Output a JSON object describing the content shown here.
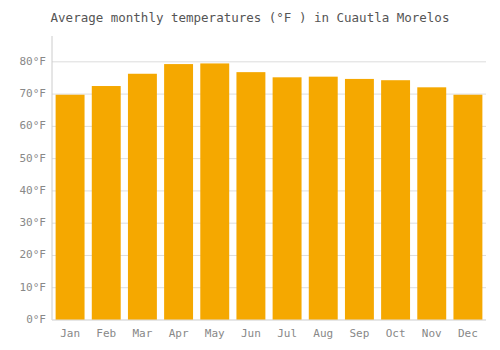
{
  "chart_data": {
    "type": "bar",
    "title": "Average monthly temperatures (°F ) in Cuautla Morelos",
    "categories": [
      "Jan",
      "Feb",
      "Mar",
      "Apr",
      "May",
      "Jun",
      "Jul",
      "Aug",
      "Sep",
      "Oct",
      "Nov",
      "Dec"
    ],
    "values": [
      69.8,
      72.5,
      76.3,
      79.3,
      79.5,
      76.8,
      75.2,
      75.4,
      74.7,
      74.3,
      72.1,
      69.8
    ],
    "color": "#F5A800",
    "ylim": [
      0,
      88
    ],
    "yticks": [
      {
        "value": 0,
        "label": "0°F"
      },
      {
        "value": 10,
        "label": "10°F"
      },
      {
        "value": 20,
        "label": "20°F"
      },
      {
        "value": 30,
        "label": "30°F"
      },
      {
        "value": 40,
        "label": "40°F"
      },
      {
        "value": 50,
        "label": "50°F"
      },
      {
        "value": 60,
        "label": "60°F"
      },
      {
        "value": 70,
        "label": "70°F"
      },
      {
        "value": 80,
        "label": "80°F"
      }
    ],
    "grid": true
  }
}
